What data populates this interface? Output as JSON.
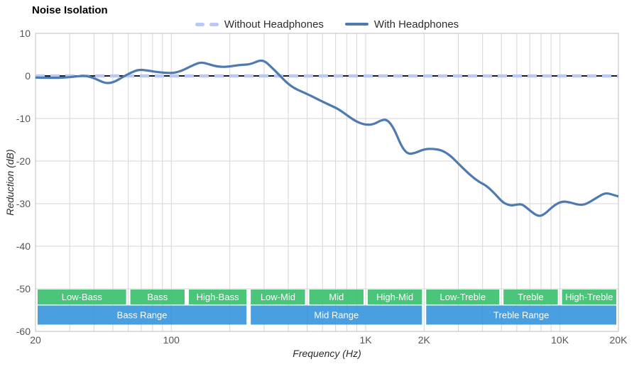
{
  "title": "Noise Isolation",
  "legend": {
    "items": [
      {
        "label": "Without Headphones",
        "color": "#b9c8f7",
        "style": "dashed"
      },
      {
        "label": "With Headphones",
        "color": "#4d7ab0",
        "style": "solid"
      }
    ]
  },
  "chart_data": {
    "type": "line",
    "title": "Noise Isolation",
    "xlabel": "Frequency (Hz)",
    "ylabel": "Reduction (dB)",
    "x_scale": "log",
    "xlim": [
      20,
      20000
    ],
    "ylim": [
      -60,
      10
    ],
    "grid": true,
    "legend_position": "top-center",
    "x_ticks": [
      {
        "value": 20,
        "label": "20"
      },
      {
        "value": 100,
        "label": "100"
      },
      {
        "value": 1000,
        "label": "1K"
      },
      {
        "value": 2000,
        "label": "2K"
      },
      {
        "value": 10000,
        "label": "10K"
      },
      {
        "value": 20000,
        "label": "20K"
      }
    ],
    "x_gridlines": [
      20,
      30,
      40,
      50,
      60,
      70,
      80,
      90,
      100,
      200,
      300,
      400,
      500,
      600,
      700,
      800,
      900,
      1000,
      2000,
      3000,
      4000,
      5000,
      6000,
      7000,
      8000,
      9000,
      10000,
      20000
    ],
    "y_ticks": [
      {
        "value": 10,
        "label": "10"
      },
      {
        "value": 0,
        "label": "0"
      },
      {
        "value": -10,
        "label": "-10"
      },
      {
        "value": -20,
        "label": "-20"
      },
      {
        "value": -30,
        "label": "-30"
      },
      {
        "value": -40,
        "label": "-40"
      },
      {
        "value": -50,
        "label": "-50"
      },
      {
        "value": -60,
        "label": "-60"
      }
    ],
    "colors": {
      "grid": "#d6d6d6",
      "frame": "#bcbcbc",
      "zero_line": "#1c1c1c",
      "without_headphones": "#b9c8f7",
      "with_headphones": "#4d7ab0",
      "band_sub": "#3cc06f",
      "band_range": "#3997dc",
      "tick_text": "#555555",
      "band_text": "#ffffff"
    },
    "series": [
      {
        "name": "Without Headphones",
        "color": "#b9c8f7",
        "dashed": true,
        "width": 4.5,
        "points": [
          [
            20,
            0
          ],
          [
            20000,
            0
          ]
        ]
      },
      {
        "name": "With Headphones",
        "color": "#4d7ab0",
        "dashed": false,
        "width": 3.2,
        "points": [
          [
            20,
            -0.4
          ],
          [
            24,
            -0.45
          ],
          [
            28,
            -0.4
          ],
          [
            32,
            -0.15
          ],
          [
            36,
            0.1
          ],
          [
            40,
            -0.5
          ],
          [
            44,
            -1.4
          ],
          [
            47,
            -1.75
          ],
          [
            51,
            -1.4
          ],
          [
            56,
            -0.3
          ],
          [
            62,
            0.8
          ],
          [
            68,
            1.5
          ],
          [
            75,
            1.3
          ],
          [
            85,
            0.9
          ],
          [
            100,
            0.6
          ],
          [
            112,
            1.1
          ],
          [
            125,
            2.2
          ],
          [
            140,
            3.2
          ],
          [
            150,
            3.0
          ],
          [
            165,
            2.4
          ],
          [
            180,
            2.1
          ],
          [
            200,
            2.2
          ],
          [
            225,
            2.6
          ],
          [
            255,
            2.7
          ],
          [
            285,
            3.7
          ],
          [
            305,
            3.4
          ],
          [
            330,
            1.9
          ],
          [
            360,
            0.2
          ],
          [
            395,
            -1.7
          ],
          [
            430,
            -2.9
          ],
          [
            470,
            -3.7
          ],
          [
            520,
            -4.6
          ],
          [
            580,
            -5.7
          ],
          [
            650,
            -6.8
          ],
          [
            720,
            -7.7
          ],
          [
            800,
            -9.2
          ],
          [
            900,
            -10.8
          ],
          [
            1000,
            -11.5
          ],
          [
            1100,
            -11.4
          ],
          [
            1200,
            -10.4
          ],
          [
            1290,
            -10.2
          ],
          [
            1400,
            -12.3
          ],
          [
            1530,
            -16.6
          ],
          [
            1650,
            -18.4
          ],
          [
            1800,
            -18.1
          ],
          [
            2000,
            -17.2
          ],
          [
            2200,
            -17.1
          ],
          [
            2450,
            -17.4
          ],
          [
            2700,
            -18.5
          ],
          [
            3000,
            -20.6
          ],
          [
            3400,
            -23.0
          ],
          [
            3800,
            -24.8
          ],
          [
            4200,
            -25.8
          ],
          [
            4700,
            -28.0
          ],
          [
            5100,
            -29.8
          ],
          [
            5600,
            -30.5
          ],
          [
            6000,
            -30.2
          ],
          [
            6400,
            -30.1
          ],
          [
            7000,
            -31.6
          ],
          [
            7700,
            -33.0
          ],
          [
            8300,
            -32.6
          ],
          [
            9300,
            -30.4
          ],
          [
            10300,
            -29.4
          ],
          [
            11300,
            -29.7
          ],
          [
            12500,
            -30.3
          ],
          [
            13500,
            -30.2
          ],
          [
            15000,
            -29.0
          ],
          [
            16500,
            -27.8
          ],
          [
            17500,
            -27.5
          ],
          [
            19000,
            -28.0
          ],
          [
            20000,
            -28.3
          ]
        ]
      }
    ],
    "bands": {
      "sub": [
        {
          "label": "Low-Bass",
          "from": 20,
          "to": 60
        },
        {
          "label": "Bass",
          "from": 60,
          "to": 120
        },
        {
          "label": "High-Bass",
          "from": 120,
          "to": 250
        },
        {
          "label": "Low-Mid",
          "from": 250,
          "to": 500
        },
        {
          "label": "Mid",
          "from": 500,
          "to": 1000
        },
        {
          "label": "High-Mid",
          "from": 1000,
          "to": 2000
        },
        {
          "label": "Low-Treble",
          "from": 2000,
          "to": 5000
        },
        {
          "label": "Treble",
          "from": 5000,
          "to": 10000
        },
        {
          "label": "High-Treble",
          "from": 10000,
          "to": 20000
        }
      ],
      "range": [
        {
          "label": "Bass Range",
          "from": 20,
          "to": 250
        },
        {
          "label": "Mid Range",
          "from": 250,
          "to": 2000
        },
        {
          "label": "Treble Range",
          "from": 2000,
          "to": 20000
        }
      ]
    }
  }
}
